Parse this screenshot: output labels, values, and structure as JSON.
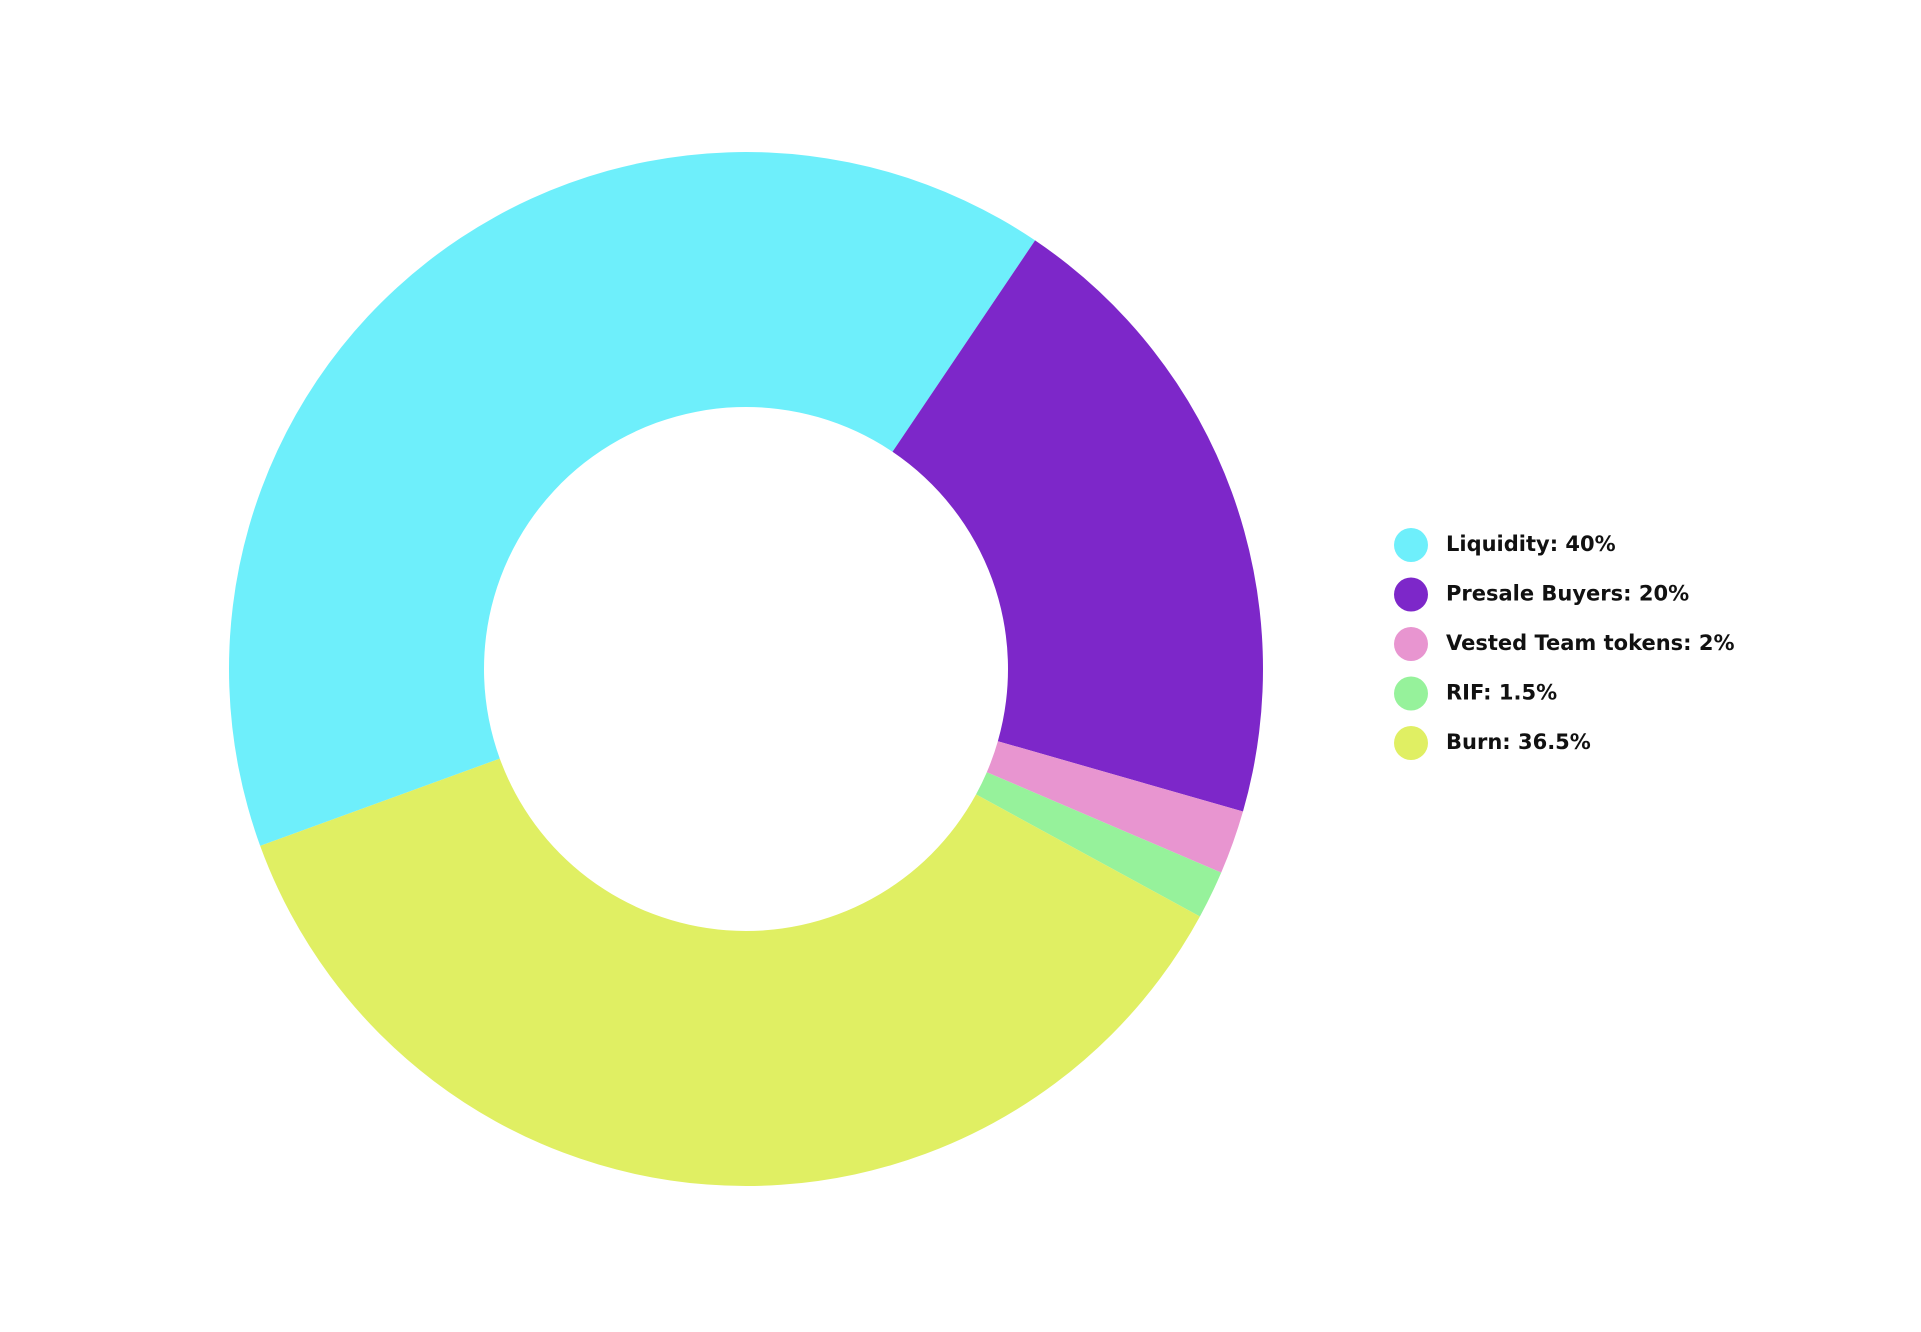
{
  "chart_data": {
    "type": "donut",
    "categories": [
      "Liquidity: 40%",
      "Presale Buyers: 20%",
      "Vested Team tokens: 2%",
      "RIF: 1.5%",
      "Burn: 36.5%"
    ],
    "values": [
      40,
      20,
      2,
      1.5,
      36.5
    ],
    "colors": [
      "#6eeffb",
      "#7d27c9",
      "#e895d0",
      "#96f29b",
      "#e0ef63"
    ],
    "legend": "right"
  }
}
